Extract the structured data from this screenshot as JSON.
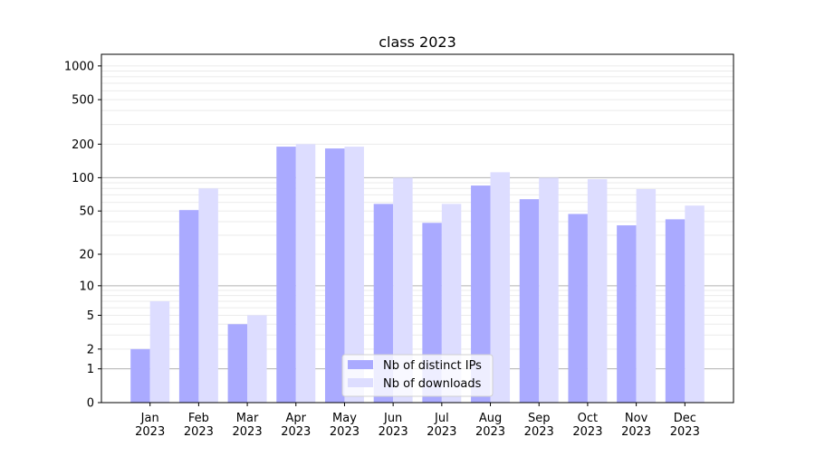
{
  "chart_data": {
    "type": "bar",
    "title": "class 2023",
    "xlabel": "",
    "ylabel": "",
    "yscale": "symlog (log10(1+y))",
    "ylim": [
      0,
      1270
    ],
    "yticks": [
      0,
      1,
      2,
      5,
      10,
      20,
      50,
      100,
      200,
      500,
      1000
    ],
    "categories": [
      "Jan\n2023",
      "Feb\n2023",
      "Mar\n2023",
      "Apr\n2023",
      "May\n2023",
      "Jun\n2023",
      "Jul\n2023",
      "Aug\n2023",
      "Sep\n2023",
      "Oct\n2023",
      "Nov\n2023",
      "Dec\n2023"
    ],
    "series": [
      {
        "name": "Nb of distinct IPs",
        "color": "#aaaaff",
        "values": [
          2,
          51,
          4,
          190,
          183,
          58,
          39,
          85,
          64,
          47,
          37,
          42
        ]
      },
      {
        "name": "Nb of downloads",
        "color": "#ddddff",
        "values": [
          7,
          80,
          5,
          200,
          190,
          100,
          58,
          112,
          100,
          97,
          79,
          56
        ]
      }
    ],
    "grid": true,
    "legend": "bottom-center"
  }
}
